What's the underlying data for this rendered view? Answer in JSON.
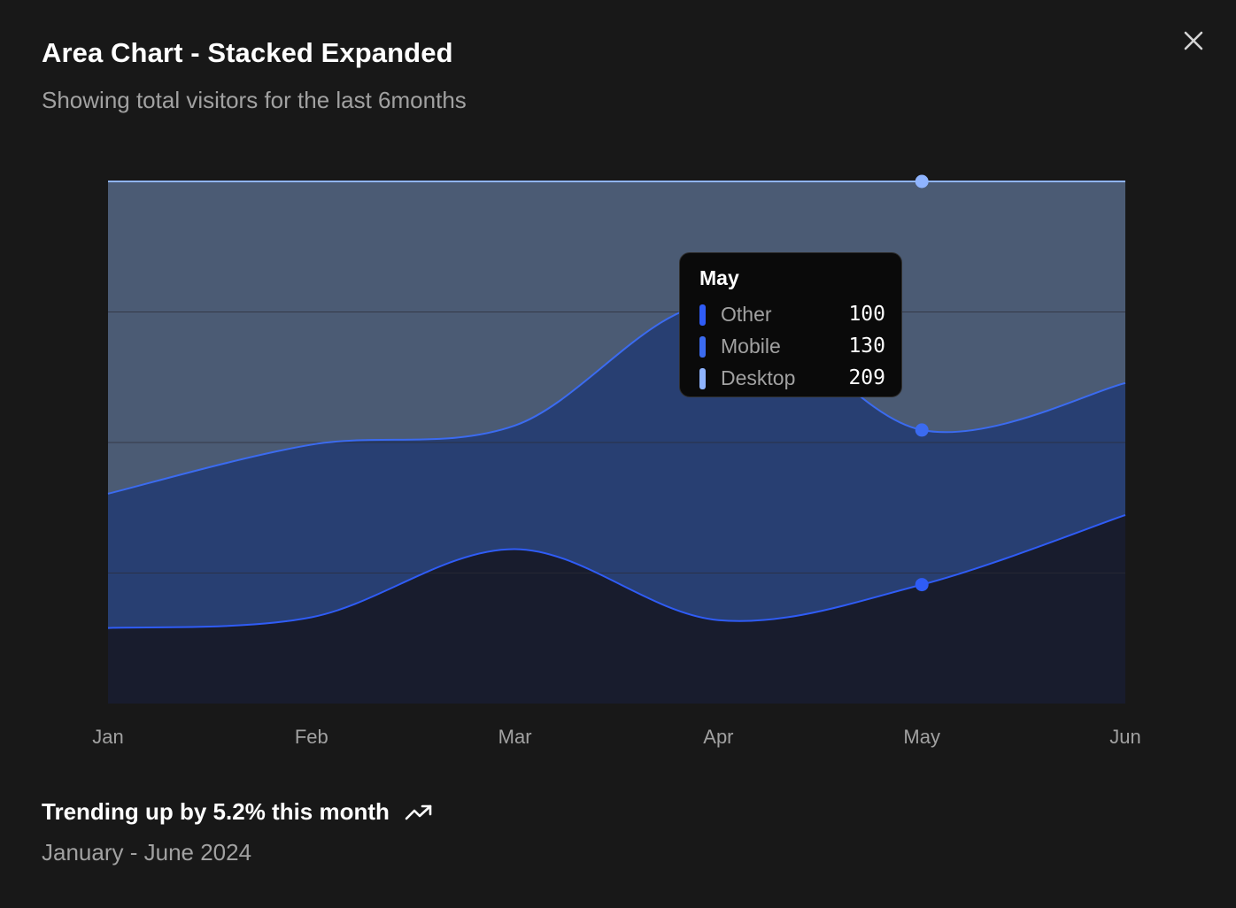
{
  "card": {
    "title": "Area Chart - Stacked Expanded",
    "subtitle": "Showing total visitors for the last 6months",
    "close_icon": "close-icon"
  },
  "chart_data": {
    "type": "area",
    "stacked": "expanded",
    "categories": [
      "Jan",
      "Feb",
      "Mar",
      "Apr",
      "May",
      "Jun"
    ],
    "series": [
      {
        "name": "Other",
        "values": [
          45,
          100,
          150,
          50,
          100,
          200
        ],
        "color": "#2f5cf6"
      },
      {
        "name": "Mobile",
        "values": [
          80,
          200,
          120,
          190,
          130,
          140
        ],
        "color": "#3b6bf0"
      },
      {
        "name": "Desktop",
        "values": [
          186,
          305,
          237,
          73,
          209,
          214
        ],
        "color": "#8fb4ff"
      }
    ],
    "ylim": [
      0,
      1
    ],
    "grid": true,
    "active_category": "May"
  },
  "tooltip": {
    "title": "May",
    "rows": [
      {
        "label": "Other",
        "value": "100",
        "color": "#2f5cf6"
      },
      {
        "label": "Mobile",
        "value": "130",
        "color": "#3b6bf0"
      },
      {
        "label": "Desktop",
        "value": "209",
        "color": "#8fb4ff"
      }
    ]
  },
  "footer": {
    "trend_text": "Trending up by 5.2% this month",
    "trend_icon": "trending-up-icon",
    "date_range": "January - June 2024"
  },
  "colors": {
    "background": "#181818",
    "grid": "#2c2c36",
    "axis_label": "#a1a1a1"
  }
}
